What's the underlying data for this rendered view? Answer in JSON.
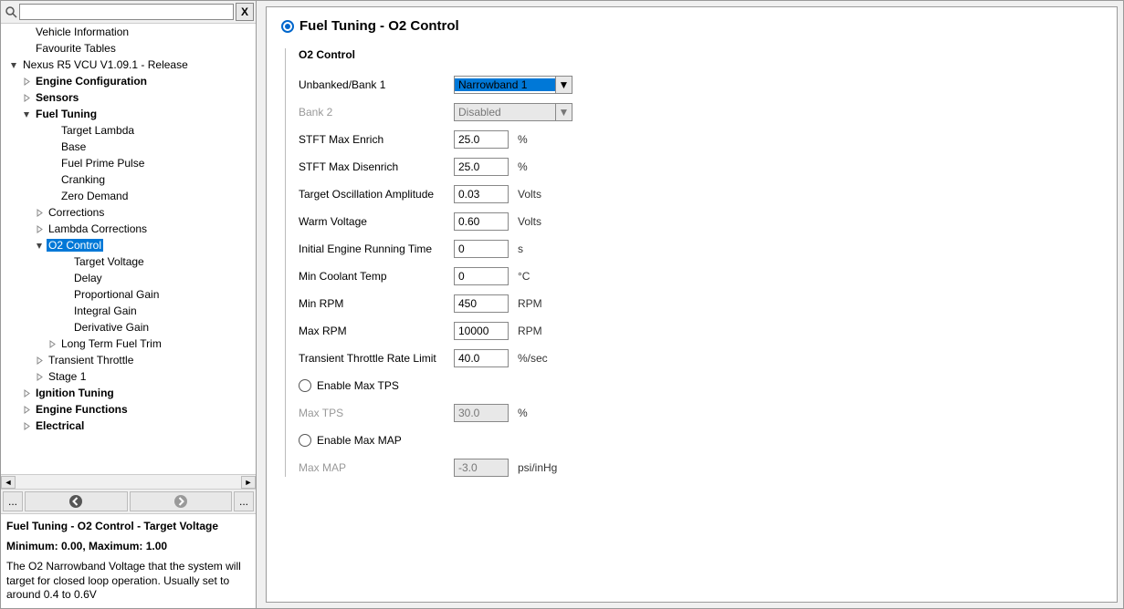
{
  "search": {
    "placeholder": "",
    "value": "",
    "clear_label": "X"
  },
  "tree": [
    {
      "label": "Vehicle Information",
      "indent": 1,
      "bold": false,
      "exp": null
    },
    {
      "label": "Favourite Tables",
      "indent": 1,
      "bold": false,
      "exp": null
    },
    {
      "label": "Nexus R5 VCU V1.09.1 - Release",
      "indent": 0,
      "bold": false,
      "exp": "open"
    },
    {
      "label": "Engine Configuration",
      "indent": 1,
      "bold": true,
      "exp": "closed"
    },
    {
      "label": "Sensors",
      "indent": 1,
      "bold": true,
      "exp": "closed"
    },
    {
      "label": "Fuel Tuning",
      "indent": 1,
      "bold": true,
      "exp": "open"
    },
    {
      "label": "Target Lambda",
      "indent": 3,
      "bold": false,
      "exp": null
    },
    {
      "label": "Base",
      "indent": 3,
      "bold": false,
      "exp": null
    },
    {
      "label": "Fuel Prime Pulse",
      "indent": 3,
      "bold": false,
      "exp": null
    },
    {
      "label": "Cranking",
      "indent": 3,
      "bold": false,
      "exp": null
    },
    {
      "label": "Zero Demand",
      "indent": 3,
      "bold": false,
      "exp": null
    },
    {
      "label": "Corrections",
      "indent": 2,
      "bold": false,
      "exp": "closed"
    },
    {
      "label": "Lambda Corrections",
      "indent": 2,
      "bold": false,
      "exp": "closed"
    },
    {
      "label": "O2 Control",
      "indent": 2,
      "bold": false,
      "exp": "open",
      "selected": true
    },
    {
      "label": "Target Voltage",
      "indent": 4,
      "bold": false,
      "exp": null
    },
    {
      "label": "Delay",
      "indent": 4,
      "bold": false,
      "exp": null
    },
    {
      "label": "Proportional Gain",
      "indent": 4,
      "bold": false,
      "exp": null
    },
    {
      "label": "Integral Gain",
      "indent": 4,
      "bold": false,
      "exp": null
    },
    {
      "label": "Derivative Gain",
      "indent": 4,
      "bold": false,
      "exp": null
    },
    {
      "label": "Long Term Fuel Trim",
      "indent": 3,
      "bold": false,
      "exp": "closed"
    },
    {
      "label": "Transient Throttle",
      "indent": 2,
      "bold": false,
      "exp": "closed"
    },
    {
      "label": "Stage 1",
      "indent": 2,
      "bold": false,
      "exp": "closed"
    },
    {
      "label": "Ignition Tuning",
      "indent": 1,
      "bold": true,
      "exp": "closed"
    },
    {
      "label": "Engine Functions",
      "indent": 1,
      "bold": true,
      "exp": "closed"
    },
    {
      "label": "Electrical",
      "indent": 1,
      "bold": true,
      "exp": "closed"
    }
  ],
  "nav": {
    "more1": "...",
    "more2": "..."
  },
  "info": {
    "title": "Fuel Tuning - O2 Control - Target Voltage",
    "minmax": "Minimum: 0.00, Maximum: 1.00",
    "desc": "The O2 Narrowband Voltage that the system will target for closed loop operation. Usually set to around 0.4 to 0.6V"
  },
  "page": {
    "title": "Fuel Tuning - O2 Control",
    "section_title": "O2 Control",
    "fields": {
      "bank1": {
        "label": "Unbanked/Bank 1",
        "value": "Narrowband 1",
        "highlighted": true
      },
      "bank2": {
        "label": "Bank 2",
        "value": "Disabled",
        "disabled": true
      },
      "stft_enrich": {
        "label": "STFT Max Enrich",
        "value": "25.0",
        "unit": "%"
      },
      "stft_disenrich": {
        "label": "STFT Max Disenrich",
        "value": "25.0",
        "unit": "%"
      },
      "osc_amp": {
        "label": "Target Oscillation Amplitude",
        "value": "0.03",
        "unit": "Volts"
      },
      "warm_voltage": {
        "label": "Warm Voltage",
        "value": "0.60",
        "unit": "Volts"
      },
      "init_time": {
        "label": "Initial Engine Running Time",
        "value": "0",
        "unit": "s"
      },
      "min_coolant": {
        "label": "Min Coolant Temp",
        "value": "0",
        "unit": "°C"
      },
      "min_rpm": {
        "label": "Min RPM",
        "value": "450",
        "unit": "RPM"
      },
      "max_rpm": {
        "label": "Max RPM",
        "value": "10000",
        "unit": "RPM"
      },
      "throttle_rate": {
        "label": "Transient Throttle Rate Limit",
        "value": "40.0",
        "unit": "%/sec"
      },
      "enable_tps": {
        "label": "Enable Max TPS",
        "checked": false
      },
      "max_tps": {
        "label": "Max TPS",
        "value": "30.0",
        "unit": "%",
        "disabled": true
      },
      "enable_map": {
        "label": "Enable Max MAP",
        "checked": false
      },
      "max_map": {
        "label": "Max MAP",
        "value": "-3.0",
        "unit": "psi/inHg",
        "disabled": true
      }
    }
  },
  "colors": {
    "selection": "#0078d7",
    "accent": "#0066cc",
    "bg": "#f0f0f0",
    "border": "#9a9a9a"
  }
}
